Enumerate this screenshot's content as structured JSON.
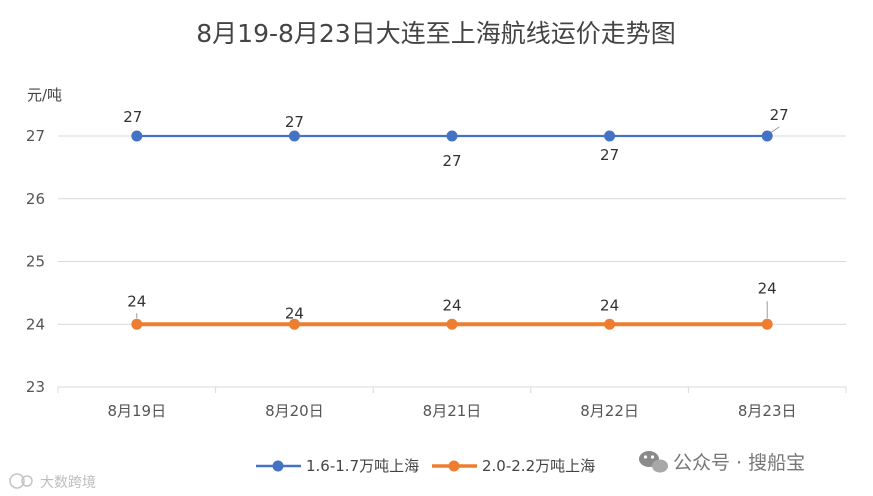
{
  "chart_data": {
    "type": "line",
    "title": "8月19-8月23日大连至上海航线运价走势图",
    "ylabel": "元/吨",
    "xlabel": "",
    "categories": [
      "8月19日",
      "8月20日",
      "8月21日",
      "8月22日",
      "8月23日"
    ],
    "ylim": [
      23,
      27
    ],
    "yticks": [
      23,
      24,
      25,
      26,
      27
    ],
    "grid": true,
    "legend_position": "bottom",
    "series": [
      {
        "name": "1.6-1.7万吨上海",
        "color": "#4472C4",
        "values": [
          27,
          27,
          27,
          27,
          27
        ],
        "data_labels": [
          "27",
          "27",
          "27",
          "27",
          "27"
        ]
      },
      {
        "name": "2.0-2.2万吨上海",
        "color": "#ED7D31",
        "values": [
          24,
          24,
          24,
          24,
          24
        ],
        "data_labels": [
          "24",
          "24",
          "24",
          "24",
          "24"
        ]
      }
    ]
  },
  "watermarks": {
    "right": "公众号 · 搜船宝",
    "left": "大数跨境"
  }
}
